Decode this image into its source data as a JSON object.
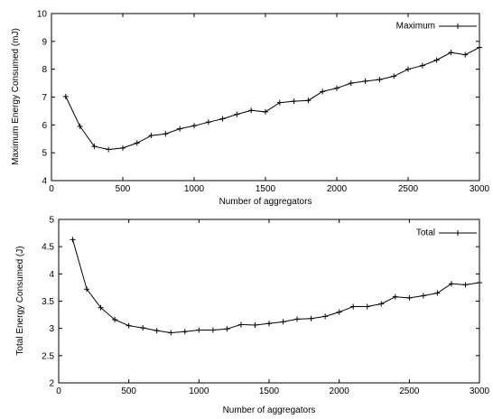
{
  "chart_data": [
    {
      "type": "line",
      "title": "",
      "xlabel": "Number of aggregators",
      "ylabel": "Maximum Energy Consumed (mJ)",
      "xlim": [
        0,
        3000
      ],
      "ylim": [
        4,
        10
      ],
      "xticks": [
        0,
        500,
        1000,
        1500,
        2000,
        2500,
        3000
      ],
      "yticks": [
        4,
        5,
        6,
        7,
        8,
        9,
        10
      ],
      "xtick_labels": [
        "0",
        "500",
        "1000",
        "1500",
        "2000",
        "2500",
        "3000"
      ],
      "ytick_labels": [
        "4",
        "5",
        "6",
        "7",
        "8",
        "9",
        "10"
      ],
      "grid": false,
      "legend_position": "top-right",
      "series": [
        {
          "name": "Maximum",
          "marker": "plus",
          "color": "#000000",
          "x": [
            100,
            200,
            300,
            400,
            500,
            600,
            700,
            800,
            900,
            1000,
            1100,
            1200,
            1300,
            1400,
            1500,
            1600,
            1700,
            1800,
            1900,
            2000,
            2100,
            2200,
            2300,
            2400,
            2500,
            2600,
            2700,
            2800,
            2900,
            3000
          ],
          "y": [
            7.02,
            5.95,
            5.23,
            5.12,
            5.17,
            5.35,
            5.62,
            5.68,
            5.86,
            5.97,
            6.1,
            6.22,
            6.38,
            6.52,
            6.47,
            6.8,
            6.85,
            6.88,
            7.2,
            7.32,
            7.5,
            7.57,
            7.63,
            7.75,
            8.0,
            8.13,
            8.33,
            8.6,
            8.52,
            8.78
          ]
        }
      ]
    },
    {
      "type": "line",
      "title": "",
      "xlabel": "Number of aggregators",
      "ylabel": "Total Energy Consumed (J)",
      "xlim": [
        0,
        3000
      ],
      "ylim": [
        2,
        5
      ],
      "xticks": [
        0,
        500,
        1000,
        1500,
        2000,
        2500,
        3000
      ],
      "yticks": [
        2,
        2.5,
        3,
        3.5,
        4,
        4.5,
        5
      ],
      "xtick_labels": [
        "0",
        "500",
        "1000",
        "1500",
        "2000",
        "2500",
        "3000"
      ],
      "ytick_labels": [
        "2",
        "2.5",
        "3",
        "3.5",
        "4",
        "4.5",
        "5"
      ],
      "grid": false,
      "legend_position": "top-right",
      "series": [
        {
          "name": "Total",
          "marker": "plus",
          "color": "#000000",
          "x": [
            100,
            200,
            300,
            400,
            500,
            600,
            700,
            800,
            900,
            1000,
            1100,
            1200,
            1300,
            1400,
            1500,
            1600,
            1700,
            1800,
            1900,
            2000,
            2100,
            2200,
            2300,
            2400,
            2500,
            2600,
            2700,
            2800,
            2900,
            3000
          ],
          "y": [
            4.63,
            3.72,
            3.38,
            3.16,
            3.05,
            3.01,
            2.96,
            2.92,
            2.94,
            2.97,
            2.97,
            2.99,
            3.07,
            3.06,
            3.09,
            3.12,
            3.17,
            3.18,
            3.22,
            3.3,
            3.4,
            3.4,
            3.45,
            3.58,
            3.56,
            3.6,
            3.65,
            3.82,
            3.8,
            3.84
          ]
        }
      ]
    }
  ]
}
